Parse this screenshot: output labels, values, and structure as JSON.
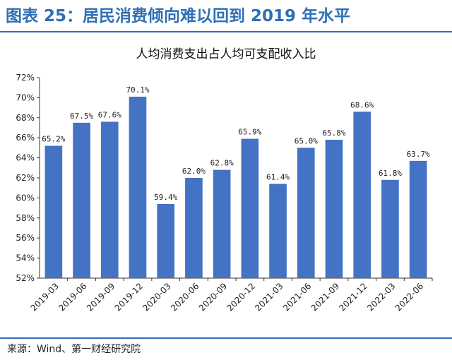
{
  "figure": {
    "title": "图表 25：居民消费倾向难以回到 2019 年水平",
    "source": "来源：Wind、第一财经研究院"
  },
  "colors": {
    "accent": "#2f6fb6",
    "bar": "#4472c4"
  },
  "chart_data": {
    "type": "bar",
    "title": "人均消费支出占人均可支配收入比",
    "xlabel": "",
    "ylabel": "",
    "categories": [
      "2019-03",
      "2019-06",
      "2019-09",
      "2019-12",
      "2020-03",
      "2020-06",
      "2020-09",
      "2020-12",
      "2021-03",
      "2021-06",
      "2021-09",
      "2021-12",
      "2022-03",
      "2022-06"
    ],
    "values": [
      65.2,
      67.5,
      67.6,
      70.1,
      59.4,
      62.0,
      62.8,
      65.9,
      61.4,
      65.0,
      65.8,
      68.6,
      61.8,
      63.7
    ],
    "data_labels": [
      "65.2%",
      "67.5%",
      "67.6%",
      "70.1%",
      "59.4%",
      "62.0%",
      "62.8%",
      "65.9%",
      "61.4%",
      "65.0%",
      "65.8%",
      "68.6%",
      "61.8%",
      "63.7%"
    ],
    "ylim": [
      52,
      72
    ],
    "yticks": [
      52,
      54,
      56,
      58,
      60,
      62,
      64,
      66,
      68,
      70,
      72
    ],
    "ytick_labels": [
      "52%",
      "54%",
      "56%",
      "58%",
      "60%",
      "62%",
      "64%",
      "66%",
      "68%",
      "70%",
      "72%"
    ],
    "grid": false,
    "legend": "none"
  }
}
